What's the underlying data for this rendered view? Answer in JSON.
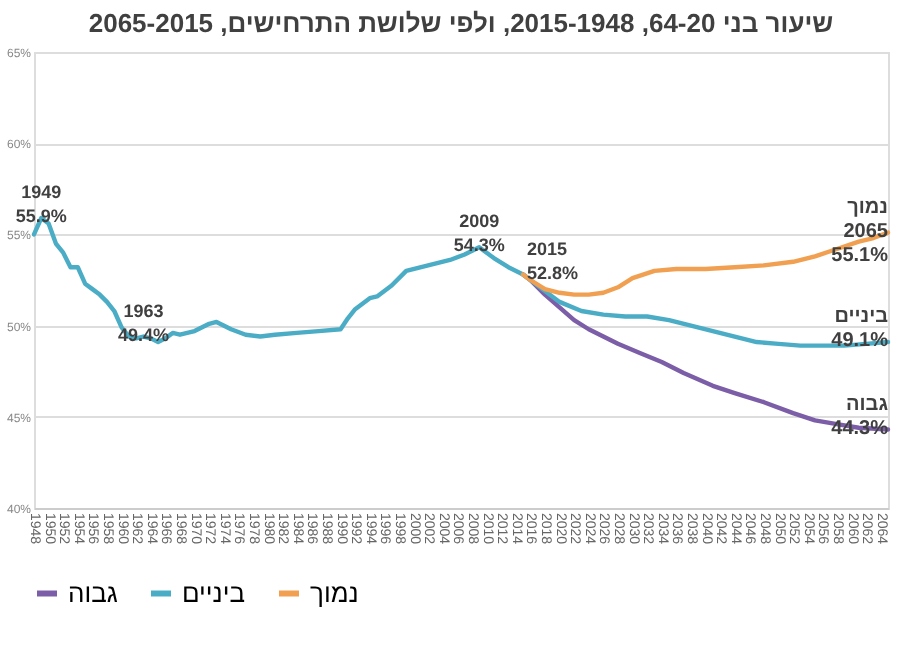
{
  "chart_data": {
    "type": "line",
    "title": "שיעור בני 64-20, 2015-1948, ולפי שלושת התרחישים, 2065-2015",
    "xlim": [
      1948,
      2065
    ],
    "xticks": [
      1948,
      1950,
      1952,
      1954,
      1956,
      1958,
      1960,
      1962,
      1964,
      1966,
      1968,
      1970,
      1972,
      1974,
      1976,
      1978,
      1980,
      1982,
      1984,
      1986,
      1988,
      1990,
      1992,
      1994,
      1996,
      1998,
      2000,
      2002,
      2004,
      2006,
      2008,
      2010,
      2012,
      2014,
      2016,
      2018,
      2020,
      2022,
      2024,
      2026,
      2028,
      2030,
      2032,
      2034,
      2036,
      2038,
      2040,
      2042,
      2044,
      2046,
      2048,
      2050,
      2052,
      2054,
      2056,
      2058,
      2060,
      2062,
      2064
    ],
    "ylim": [
      40,
      65
    ],
    "yticks": [
      {
        "value": 40,
        "label": "40%"
      },
      {
        "value": 45,
        "label": "45%"
      },
      {
        "value": 50,
        "label": "50%"
      },
      {
        "value": 55,
        "label": "55%"
      },
      {
        "value": 60,
        "label": "60%"
      },
      {
        "value": 65,
        "label": "65%"
      }
    ],
    "grid": "y",
    "legend": "bottom",
    "line_style": "solid",
    "series": [
      {
        "name": "גבוה",
        "color": "#7b5ea7",
        "x": [
          2015,
          2016,
          2018,
          2020,
          2022,
          2024,
          2026,
          2028,
          2031,
          2034,
          2037,
          2041,
          2044,
          2048,
          2052,
          2055,
          2058,
          2061,
          2065
        ],
        "values": [
          52.8,
          52.5,
          51.7,
          51.0,
          50.3,
          49.8,
          49.4,
          49.0,
          48.5,
          48.0,
          47.4,
          46.7,
          46.3,
          45.8,
          45.2,
          44.8,
          44.6,
          44.4,
          44.3
        ]
      },
      {
        "name": "ביניים",
        "color": "#4bacc6",
        "x": [
          1948,
          1949,
          1950,
          1951,
          1952,
          1953,
          1954,
          1955,
          1956,
          1957,
          1958,
          1959,
          1960,
          1961,
          1962,
          1963,
          1964,
          1965,
          1966,
          1967,
          1968,
          1970,
          1972,
          1973,
          1975,
          1977,
          1979,
          1981,
          1984,
          1987,
          1990,
          1991,
          1992,
          1994,
          1995,
          1997,
          1999,
          2002,
          2005,
          2007,
          2009,
          2011,
          2013,
          2015,
          2016,
          2018,
          2020,
          2023,
          2026,
          2029,
          2032,
          2035,
          2038,
          2041,
          2044,
          2047,
          2050,
          2053,
          2056,
          2059,
          2062,
          2065
        ],
        "values": [
          55.0,
          55.9,
          55.6,
          54.5,
          54.0,
          53.2,
          53.2,
          52.3,
          52.0,
          51.7,
          51.3,
          50.8,
          49.9,
          49.4,
          49.3,
          49.4,
          49.3,
          49.1,
          49.3,
          49.6,
          49.5,
          49.7,
          50.1,
          50.2,
          49.8,
          49.5,
          49.4,
          49.5,
          49.6,
          49.7,
          49.8,
          50.4,
          50.9,
          51.5,
          51.6,
          52.2,
          53.0,
          53.3,
          53.6,
          53.9,
          54.3,
          53.7,
          53.2,
          52.8,
          52.5,
          51.9,
          51.3,
          50.8,
          50.6,
          50.5,
          50.5,
          50.3,
          50.0,
          49.7,
          49.4,
          49.1,
          49.0,
          48.9,
          48.9,
          48.9,
          49.0,
          49.1
        ]
      },
      {
        "name": "נמוך",
        "color": "#f0a050",
        "x": [
          2015,
          2016,
          2018,
          2020,
          2022,
          2024,
          2026,
          2028,
          2030,
          2033,
          2036,
          2040,
          2044,
          2048,
          2052,
          2055,
          2058,
          2061,
          2063,
          2065
        ],
        "values": [
          52.8,
          52.5,
          52.0,
          51.8,
          51.7,
          51.7,
          51.8,
          52.1,
          52.6,
          53.0,
          53.1,
          53.1,
          53.2,
          53.3,
          53.5,
          53.8,
          54.2,
          54.6,
          54.8,
          55.1
        ]
      }
    ],
    "annotations": [
      {
        "text": "1949\n55.9%",
        "x": 1949,
        "y": 55.9
      },
      {
        "text": "1963\n49.4%",
        "x": 1963,
        "y": 49.4
      },
      {
        "text": "2009\n54.3%",
        "x": 2009,
        "y": 54.3
      },
      {
        "text": "2015\n52.8%",
        "x": 2015,
        "y": 52.8
      },
      {
        "text": "נמוך\n2065\n55.1%",
        "x": 2065,
        "y": 55.1
      },
      {
        "text": "ביניים\n49.1%",
        "x": 2065,
        "y": 49.1
      },
      {
        "text": "גבוה\n44.3%",
        "x": 2065,
        "y": 44.3
      }
    ]
  }
}
